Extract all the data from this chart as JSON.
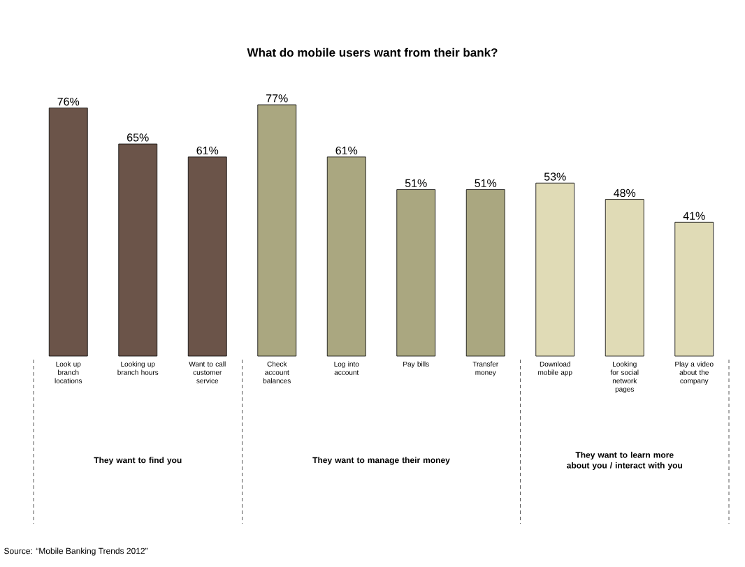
{
  "chart_data": {
    "type": "bar",
    "title": "What do mobile users want from their bank?",
    "categories": [
      "Look up branch locations",
      "Looking up branch hours",
      "Want to call customer service",
      "Check account balances",
      "Log into account",
      "Pay bills",
      "Transfer money",
      "Download mobile app",
      "Looking for social network pages",
      "Play a video about the company"
    ],
    "values": [
      76,
      65,
      61,
      77,
      61,
      51,
      51,
      53,
      48,
      41
    ],
    "value_labels": [
      "76%",
      "65%",
      "61%",
      "77%",
      "61%",
      "51%",
      "51%",
      "53%",
      "48%",
      "41%"
    ],
    "colors": [
      "#6b5449",
      "#6b5449",
      "#6b5449",
      "#aaa780",
      "#aaa780",
      "#aaa780",
      "#aaa780",
      "#e0dbb6",
      "#e0dbb6",
      "#e0dbb6"
    ],
    "annotations": [
      "They want to find you",
      "They want to manage their money",
      "They want to learn more about you / interact with you",
      "Source: “Mobile Banking Trends 2012”"
    ]
  }
}
